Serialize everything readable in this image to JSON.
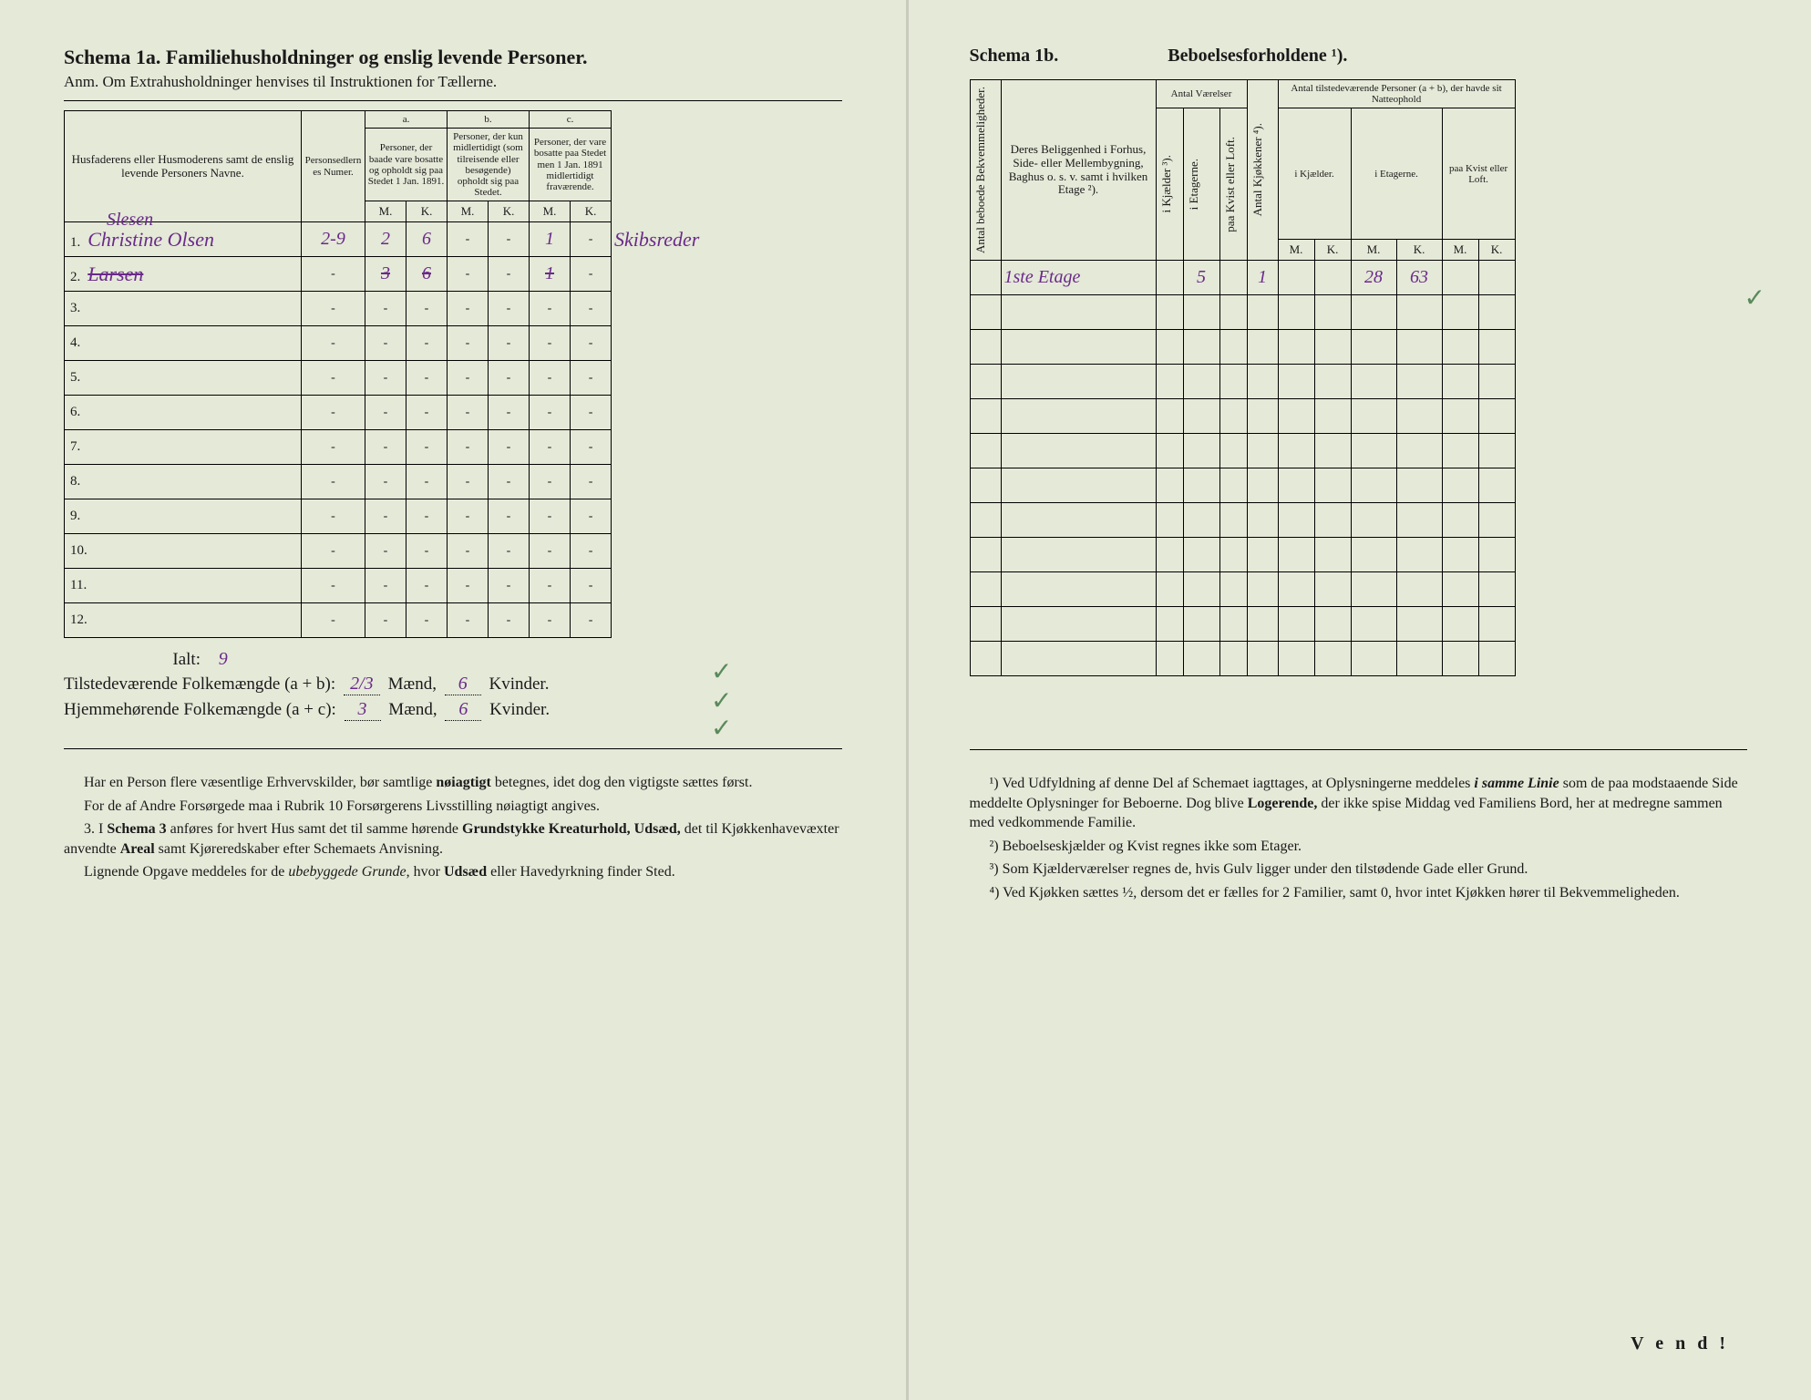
{
  "left": {
    "title": "Schema 1a.  Familiehusholdninger og enslig levende Personer.",
    "subtitle": "Anm. Om Extrahusholdninger henvises til Instruktionen for Tællerne.",
    "col_names": "Husfaderens eller Husmoderens samt de enslig levende Personers Navne.",
    "col_persnum": "Personsedlernes Numer.",
    "group_a_letter": "a.",
    "group_a": "Personer, der baade vare bosatte og opholdt sig paa Stedet 1 Jan. 1891.",
    "group_b_letter": "b.",
    "group_b": "Personer, der kun midlertidigt (som tilreisende eller besøgende) opholdt sig paa Stedet.",
    "group_c_letter": "c.",
    "group_c": "Personer, der vare bosatte paa Stedet men 1 Jan. 1891 midlertidigt fraværende.",
    "mk_m": "M.",
    "mk_k": "K.",
    "row_count": 12,
    "rows": [
      {
        "hw_above": "Slesen",
        "name": "Christine Olsen",
        "num": "2-9",
        "a_m": "2",
        "a_k": "6",
        "b_m": "",
        "b_k": "",
        "c_m": "1",
        "c_k": "",
        "extra": "Skibsreder"
      },
      {
        "name": "Larsen",
        "num": "",
        "a_m": "3",
        "a_k": "6",
        "b_m": "",
        "b_k": "",
        "c_m": "1",
        "c_k": "",
        "strike": true
      },
      {
        "name": "",
        "num": ""
      },
      {
        "name": "",
        "num": ""
      },
      {
        "name": "",
        "num": ""
      },
      {
        "name": "",
        "num": ""
      },
      {
        "name": "",
        "num": ""
      },
      {
        "name": "",
        "num": ""
      },
      {
        "name": "",
        "num": ""
      },
      {
        "name": "",
        "num": ""
      },
      {
        "name": "",
        "num": ""
      },
      {
        "name": "",
        "num": ""
      }
    ],
    "summary": {
      "ialt_label": "Ialt:",
      "ialt_val": "9",
      "line1_pre": "Tilstedeværende Folkemængde (a + b):",
      "line1_m": "2/3",
      "m_label": "Mænd,",
      "line1_k": "6",
      "k_label": "Kvinder.",
      "line2_pre": "Hjemmehørende Folkemængde (a + c):",
      "line2_m": "3",
      "line2_k": "6"
    },
    "foot": {
      "p1a": "Har en Person flere væsentlige Erhvervskilder, bør samtlige ",
      "p1b": "nøiagtigt",
      "p1c": " betegnes, idet dog den vigtigste sættes først.",
      "p2": "For de af Andre Forsørgede maa i Rubrik 10 Forsørgerens Livsstilling nøiagtigt angives.",
      "p3n": "3.",
      "p3a": "I ",
      "p3b": "Schema 3",
      "p3c": " anføres for hvert Hus samt det til samme hørende ",
      "p3d": "Grundstykke Kreaturhold, Udsæd,",
      "p3e": " det til Kjøkkenhavevæxter anvendte ",
      "p3f": "Areal",
      "p3g": " samt Kjøreredskaber efter Schemaets Anvisning.",
      "p4a": "Lignende Opgave meddeles for de ",
      "p4b": "ubebyggede Grunde",
      "p4c": ", hvor ",
      "p4d": "Udsæd",
      "p4e": " eller Havedyrkning finder Sted."
    }
  },
  "right": {
    "title_a": "Schema 1b.",
    "title_b": "Beboelsesforholdene ¹).",
    "col_bekv": "Antal beboede Bekvemmeligheder.",
    "col_belig": "Deres Beliggenhed i Forhus, Side- eller Mellembygning, Baghus o. s. v. samt i hvilken Etage ²).",
    "group_vaer": "Antal Værelser",
    "col_kjael": "i Kjælder ³).",
    "col_etag": "i Etagerne.",
    "col_kvist": "paa Kvist eller Loft.",
    "col_kjok": "Antal Kjøkkener ⁴).",
    "group_tilst": "Antal tilstedeværende Personer (a + b), der havde sit Natteophold",
    "col_t_kjael": "i Kjælder.",
    "col_t_etag": "i Etagerne.",
    "col_t_kvist": "paa Kvist eller Loft.",
    "mk_m": "M.",
    "mk_k": "K.",
    "rows": [
      {
        "bekv": "",
        "belig": "1ste Etage",
        "v_kj": "",
        "v_et": "5",
        "v_kv": "",
        "kjok": "1",
        "t_kj_m": "",
        "t_kj_k": "",
        "t_et_m": "28",
        "t_et_k": "63",
        "t_kv_m": "",
        "t_kv_k": ""
      }
    ],
    "row_count": 12,
    "foot": {
      "n1a": "¹) Ved Udfyldning af denne Del af Schemaet iagttages, at Oplysningerne meddeles ",
      "n1b": "i samme Linie",
      "n1c": " som de paa modstaaende Side meddelte Oplysninger for Beboerne. Dog blive ",
      "n1d": "Logerende,",
      "n1e": " der ikke spise Middag ved Familiens Bord, her at medregne sammen med vedkommende Familie.",
      "n2": "²) Beboelseskjælder og Kvist regnes ikke som Etager.",
      "n3": "³) Som Kjælderværelser regnes de, hvis Gulv ligger under den tilstødende Gade eller Grund.",
      "n4": "⁴) Ved Kjøkken sættes ½, dersom det er fælles for 2 Familier, samt 0, hvor intet Kjøkken hører til Bekvemmeligheden."
    },
    "vend": "V e n d !"
  },
  "colors": {
    "paper": "#e5e9d8",
    "ink": "#1a1a1a",
    "handwriting": "#6a2a8a",
    "check": "#5a8a5a"
  }
}
